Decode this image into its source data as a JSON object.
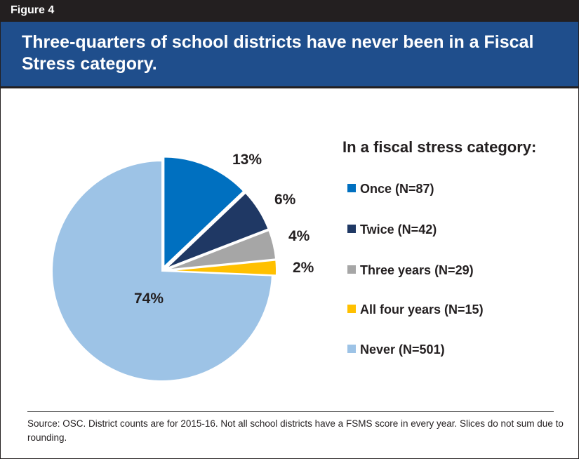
{
  "figure_label": "Figure 4",
  "title": "Three-quarters of school districts have never been in a Fiscal Stress category.",
  "source_note": "Source: OSC. District counts are for 2015-16. Not all school districts have a FSMS score in every year. Slices do not sum due to rounding.",
  "chart_data": {
    "type": "pie",
    "title": "",
    "legend_title": "In a fiscal stress category:",
    "legend_position": "right",
    "slices": [
      {
        "label": "Once (N=87)",
        "count": 87,
        "percent": 13,
        "percent_label": "13%",
        "color": "#0070c0",
        "exploded": true
      },
      {
        "label": "Twice (N=42)",
        "count": 42,
        "percent": 6,
        "percent_label": "6%",
        "color": "#1f3864",
        "exploded": true
      },
      {
        "label": "Three years (N=29)",
        "count": 29,
        "percent": 4,
        "percent_label": "4%",
        "color": "#a6a6a6",
        "exploded": true
      },
      {
        "label": "All four years (N=15)",
        "count": 15,
        "percent": 2,
        "percent_label": "2%",
        "color": "#ffc000",
        "exploded": true
      },
      {
        "label": "Never (N=501)",
        "count": 501,
        "percent": 74,
        "percent_label": "74%",
        "color": "#9dc3e6",
        "exploded": false
      }
    ]
  }
}
